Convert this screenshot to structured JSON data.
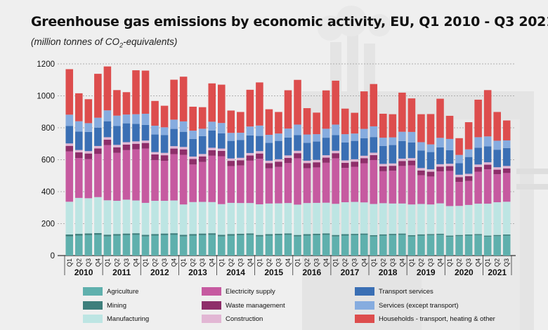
{
  "header": {
    "title": "Greenhouse gas emissions by economic activity,  EU, Q1 2010 - Q3 2021",
    "subtitle_pre": "(million tonnes of CO",
    "subtitle_sub": "2",
    "subtitle_post": "-equivalents)"
  },
  "chart_data": {
    "type": "bar",
    "stacked": true,
    "title": "Greenhouse gas emissions by economic activity,  EU, Q1 2010 - Q3 2021",
    "ylabel": "million tonnes of CO2-equivalents",
    "ylim": [
      0,
      1200
    ],
    "yticks": [
      0,
      200,
      400,
      600,
      800,
      1000,
      1200
    ],
    "grid": true,
    "years": [
      "2010",
      "2011",
      "2012",
      "2013",
      "2014",
      "2015",
      "2016",
      "2017",
      "2018",
      "2019",
      "2020",
      "2021"
    ],
    "categories": [
      "Q1",
      "Q2",
      "Q3",
      "Q4",
      "Q1",
      "Q2",
      "Q3",
      "Q4",
      "Q1",
      "Q2",
      "Q3",
      "Q4",
      "Q1",
      "Q2",
      "Q3",
      "Q4",
      "Q1",
      "Q2",
      "Q3",
      "Q4",
      "Q1",
      "Q2",
      "Q3",
      "Q4",
      "Q1",
      "Q2",
      "Q3",
      "Q4",
      "Q1",
      "Q2",
      "Q3",
      "Q4",
      "Q1",
      "Q2",
      "Q3",
      "Q4",
      "Q1",
      "Q2",
      "Q3",
      "Q4",
      "Q1",
      "Q2",
      "Q3",
      "Q4",
      "Q1",
      "Q2",
      "Q3"
    ],
    "series": [
      {
        "name": "Agriculture",
        "color": "#5fb0ad",
        "values": [
          120,
          125,
          128,
          130,
          120,
          125,
          128,
          130,
          120,
          125,
          128,
          130,
          120,
          125,
          128,
          130,
          120,
          125,
          128,
          130,
          120,
          125,
          128,
          130,
          120,
          125,
          128,
          130,
          120,
          125,
          128,
          130,
          120,
          125,
          128,
          130,
          120,
          125,
          128,
          130,
          118,
          122,
          125,
          128,
          118,
          122,
          125
        ]
      },
      {
        "name": "Mining",
        "color": "#3e7f7c",
        "values": [
          12,
          11,
          11,
          11,
          11,
          10,
          10,
          10,
          10,
          10,
          10,
          10,
          10,
          10,
          10,
          10,
          10,
          10,
          9,
          9,
          9,
          9,
          9,
          9,
          9,
          9,
          9,
          9,
          9,
          9,
          8,
          8,
          8,
          8,
          8,
          8,
          8,
          8,
          7,
          7,
          7,
          7,
          7,
          7,
          7,
          7,
          7
        ]
      },
      {
        "name": "Manufacturing",
        "color": "#bde5e3",
        "values": [
          205,
          225,
          220,
          225,
          215,
          208,
          212,
          205,
          200,
          208,
          205,
          205,
          190,
          200,
          198,
          195,
          192,
          195,
          192,
          190,
          192,
          192,
          190,
          190,
          190,
          195,
          193,
          192,
          195,
          200,
          200,
          195,
          195,
          195,
          190,
          188,
          192,
          190,
          185,
          190,
          185,
          182,
          185,
          190,
          200,
          205,
          205
        ]
      },
      {
        "name": "Electricity supply",
        "color": "#c65aa0",
        "values": [
          315,
          250,
          245,
          270,
          345,
          300,
          310,
          320,
          340,
          255,
          250,
          290,
          310,
          235,
          250,
          290,
          300,
          230,
          235,
          265,
          285,
          220,
          228,
          250,
          290,
          218,
          222,
          250,
          285,
          215,
          220,
          245,
          275,
          200,
          205,
          235,
          245,
          180,
          175,
          200,
          220,
          150,
          150,
          200,
          215,
          175,
          180
        ]
      },
      {
        "name": "Waste management",
        "color": "#8e2e6a",
        "values": [
          35,
          35,
          35,
          35,
          35,
          35,
          35,
          35,
          35,
          35,
          35,
          35,
          35,
          35,
          35,
          35,
          33,
          33,
          33,
          33,
          33,
          33,
          33,
          33,
          32,
          32,
          32,
          32,
          32,
          32,
          32,
          32,
          31,
          31,
          31,
          31,
          30,
          30,
          30,
          30,
          30,
          30,
          30,
          30,
          29,
          29,
          29
        ]
      },
      {
        "name": "Construction",
        "color": "#e2b7d4",
        "values": [
          15,
          15,
          15,
          15,
          15,
          15,
          15,
          15,
          15,
          15,
          15,
          15,
          15,
          15,
          15,
          15,
          15,
          15,
          15,
          15,
          15,
          15,
          15,
          15,
          15,
          15,
          15,
          15,
          15,
          15,
          15,
          15,
          15,
          15,
          15,
          15,
          15,
          15,
          15,
          15,
          15,
          15,
          15,
          15,
          15,
          15,
          15
        ]
      },
      {
        "name": "Transport services",
        "color": "#3a6fb4",
        "values": [
          110,
          115,
          120,
          115,
          100,
          118,
          118,
          110,
          98,
          110,
          112,
          108,
          95,
          110,
          112,
          108,
          95,
          110,
          112,
          110,
          95,
          112,
          115,
          112,
          98,
          112,
          115,
          110,
          98,
          112,
          115,
          110,
          98,
          112,
          115,
          110,
          98,
          110,
          108,
          105,
          85,
          72,
          105,
          105,
          100,
          110,
          112
        ]
      },
      {
        "name": "Services (except transport)",
        "color": "#86acdf",
        "values": [
          70,
          65,
          55,
          62,
          68,
          65,
          55,
          60,
          70,
          55,
          48,
          58,
          65,
          52,
          46,
          55,
          65,
          50,
          45,
          56,
          65,
          50,
          46,
          56,
          66,
          52,
          46,
          56,
          66,
          52,
          46,
          58,
          67,
          52,
          48,
          58,
          66,
          52,
          48,
          60,
          70,
          52,
          48,
          66,
          62,
          56,
          48
        ]
      },
      {
        "name": "Households - transport, heating & other",
        "color": "#dd4d4d",
        "values": [
          285,
          175,
          150,
          275,
          275,
          160,
          140,
          275,
          270,
          155,
          135,
          250,
          280,
          150,
          135,
          240,
          240,
          140,
          130,
          230,
          270,
          160,
          135,
          240,
          280,
          165,
          135,
          240,
          275,
          160,
          130,
          235,
          265,
          150,
          145,
          245,
          210,
          175,
          190,
          245,
          145,
          105,
          170,
          235,
          290,
          180,
          125
        ]
      }
    ]
  },
  "legend": [
    {
      "label": "Agriculture",
      "color": "#5fb0ad"
    },
    {
      "label": "Mining",
      "color": "#3e7f7c"
    },
    {
      "label": "Manufacturing",
      "color": "#bde5e3"
    },
    {
      "label": "Electricity supply",
      "color": "#c65aa0"
    },
    {
      "label": "Waste management",
      "color": "#8e2e6a"
    },
    {
      "label": "Construction",
      "color": "#e2b7d4"
    },
    {
      "label": "Transport services",
      "color": "#3a6fb4"
    },
    {
      "label": "Services (except transport)",
      "color": "#86acdf"
    },
    {
      "label": "Households - transport, heating & other",
      "color": "#dd4d4d"
    }
  ]
}
